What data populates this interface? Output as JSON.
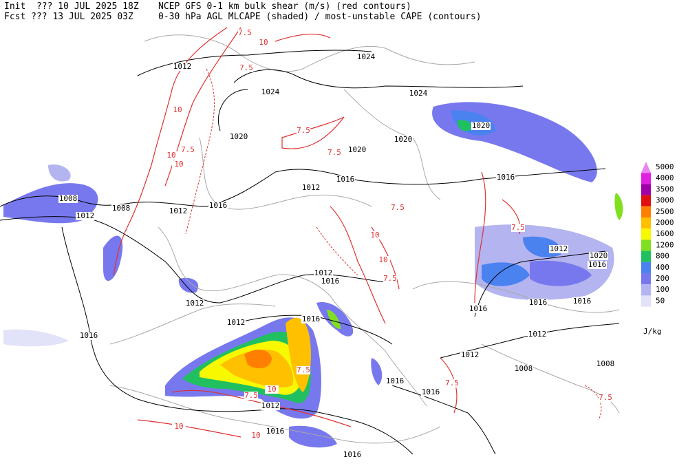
{
  "header": {
    "lines": [
      {
        "init": "Init  ??? 10 JUL 2025 18Z",
        "field": "NCEP GFS 0-1 km bulk shear (m/s) (red contours)"
      },
      {
        "init": "Fcst ??? 13 JUL 2025 03Z",
        "field": "0-30 hPa AGL MLCAPE (shaded) / most-unstable CAPE (contours)"
      }
    ]
  },
  "isobar_labels": [
    "1012",
    "1024",
    "1024",
    "1024",
    "1020",
    "1020",
    "1020",
    "1020",
    "1012",
    "1016",
    "1016",
    "1008",
    "1008",
    "1012",
    "1016",
    "1012",
    "1012",
    "1020",
    "1016",
    "1012",
    "1016",
    "1012",
    "1016",
    "1016",
    "1016",
    "1016",
    "1012",
    "1016",
    "1012",
    "1012",
    "1008",
    "1008",
    "1016",
    "1016",
    "1012",
    "1016",
    "1016"
  ],
  "shear_labels": [
    "7.5",
    "10",
    "7.5",
    "10",
    "10",
    "10",
    "7.5",
    "7.5",
    "7.5",
    "7.5",
    "10",
    "7.5",
    "10",
    "7.5",
    "7.5",
    "10",
    "7.5",
    "10",
    "10",
    "7.5",
    "7.5"
  ],
  "legend": {
    "unit": "J/kg",
    "entries": [
      {
        "value": 5000,
        "color": "#e884ee"
      },
      {
        "value": 4000,
        "color": "#e020e0"
      },
      {
        "value": 3500,
        "color": "#a000a8"
      },
      {
        "value": 3000,
        "color": "#e01010"
      },
      {
        "value": 2500,
        "color": "#ff8000"
      },
      {
        "value": 2000,
        "color": "#ffc000"
      },
      {
        "value": 1600,
        "color": "#f8f800"
      },
      {
        "value": 1200,
        "color": "#80e020"
      },
      {
        "value": 800,
        "color": "#20c060"
      },
      {
        "value": 400,
        "color": "#4a82f0"
      },
      {
        "value": 200,
        "color": "#7878ee"
      },
      {
        "value": 100,
        "color": "#b4b4f0"
      },
      {
        "value": 50,
        "color": "#e2e2f8"
      }
    ]
  }
}
